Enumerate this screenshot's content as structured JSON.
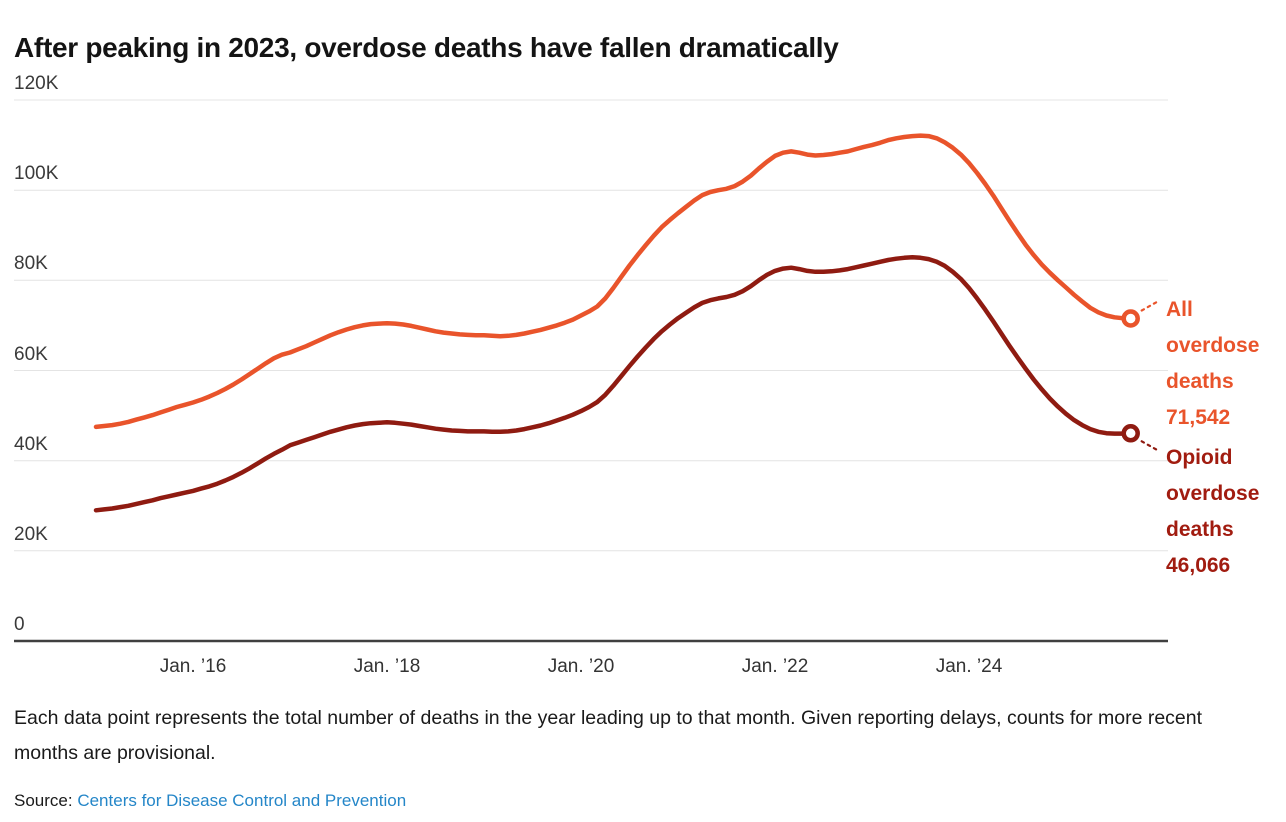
{
  "title": "After peaking in 2023, overdose deaths have fallen dramatically",
  "note": "Each data point represents the total number of deaths in the year leading up to that month. Given reporting delays, counts for more recent months are provisional.",
  "source": {
    "label": "Source:",
    "link_text": "Centers for Disease Control and Prevention",
    "link_color": "#2486C8"
  },
  "annotations": {
    "all": {
      "line1": "All",
      "line2": "overdose",
      "line3": "deaths",
      "value": "71,542",
      "color": "#E9542B"
    },
    "opioid": {
      "line1": "Opioid",
      "line2": "overdose",
      "line3": "deaths",
      "value": "46,066",
      "color": "#A11C10"
    }
  },
  "chart_data": {
    "type": "line",
    "title": "After peaking in 2023, overdose deaths have fallen dramatically",
    "x_start": "2015-01",
    "x_end": "2025-09",
    "x_interval": "monthly",
    "xlabel": "",
    "ylabel": "",
    "ylim": [
      0,
      120000
    ],
    "grid": "horizontal",
    "legend_position": "right-of-line-ends",
    "yticks": [
      {
        "value": 0,
        "label": "0"
      },
      {
        "value": 20000,
        "label": "20K"
      },
      {
        "value": 40000,
        "label": "40K"
      },
      {
        "value": 60000,
        "label": "60K"
      },
      {
        "value": 80000,
        "label": "80K"
      },
      {
        "value": 100000,
        "label": "100K"
      },
      {
        "value": 120000,
        "label": "120K"
      }
    ],
    "xticks": [
      {
        "year": 2016,
        "label": "Jan. ’16"
      },
      {
        "year": 2018,
        "label": "Jan. ’18"
      },
      {
        "year": 2020,
        "label": "Jan. ’20"
      },
      {
        "year": 2022,
        "label": "Jan. ’22"
      },
      {
        "year": 2024,
        "label": "Jan. ’24"
      }
    ],
    "series": [
      {
        "name": "All overdose deaths",
        "color": "#E9542B",
        "connector": "up",
        "final_value": 71542,
        "values": [
          47500,
          47700,
          47900,
          48200,
          48600,
          49100,
          49600,
          50100,
          50700,
          51300,
          51900,
          52400,
          52900,
          53500,
          54200,
          55000,
          55900,
          56900,
          58000,
          59200,
          60400,
          61600,
          62700,
          63500,
          64000,
          64700,
          65400,
          66200,
          67000,
          67800,
          68500,
          69100,
          69600,
          70000,
          70300,
          70400,
          70500,
          70400,
          70200,
          69900,
          69500,
          69100,
          68700,
          68400,
          68200,
          68000,
          67900,
          67800,
          67800,
          67700,
          67600,
          67700,
          67900,
          68200,
          68600,
          69000,
          69500,
          70000,
          70600,
          71300,
          72200,
          73100,
          74200,
          76000,
          78300,
          80800,
          83300,
          85600,
          87800,
          89900,
          91800,
          93400,
          94900,
          96300,
          97700,
          98900,
          99600,
          100000,
          100300,
          100900,
          101900,
          103200,
          104800,
          106300,
          107600,
          108300,
          108600,
          108300,
          107900,
          107700,
          107800,
          108000,
          108300,
          108600,
          109100,
          109600,
          110000,
          110500,
          111100,
          111500,
          111800,
          112000,
          112100,
          112000,
          111500,
          110600,
          109400,
          107900,
          106000,
          103800,
          101400,
          98800,
          96000,
          93200,
          90500,
          87900,
          85600,
          83500,
          81700,
          80000,
          78400,
          76800,
          75300,
          73900,
          72900,
          72200,
          71800,
          71600,
          71542
        ]
      },
      {
        "name": "Opioid overdose deaths",
        "color": "#8F1B11",
        "connector": "down",
        "final_value": 46066,
        "values": [
          29000,
          29200,
          29400,
          29700,
          30000,
          30400,
          30800,
          31200,
          31700,
          32100,
          32500,
          32900,
          33300,
          33800,
          34300,
          34900,
          35600,
          36400,
          37300,
          38300,
          39400,
          40500,
          41500,
          42400,
          43400,
          44000,
          44600,
          45200,
          45800,
          46400,
          46900,
          47400,
          47800,
          48100,
          48300,
          48400,
          48500,
          48400,
          48200,
          48000,
          47700,
          47400,
          47100,
          46900,
          46700,
          46600,
          46500,
          46500,
          46500,
          46400,
          46400,
          46500,
          46700,
          47000,
          47400,
          47800,
          48300,
          48900,
          49500,
          50200,
          51000,
          51900,
          53000,
          54600,
          56600,
          58800,
          61000,
          63100,
          65100,
          67000,
          68700,
          70200,
          71600,
          72800,
          74000,
          75000,
          75600,
          76000,
          76300,
          76800,
          77600,
          78700,
          80000,
          81200,
          82100,
          82600,
          82800,
          82500,
          82100,
          81900,
          81900,
          82000,
          82200,
          82500,
          82900,
          83300,
          83700,
          84100,
          84500,
          84800,
          85000,
          85100,
          85000,
          84700,
          84100,
          83200,
          81900,
          80300,
          78300,
          76000,
          73500,
          70900,
          68200,
          65500,
          62900,
          60400,
          58000,
          55800,
          53800,
          52000,
          50400,
          49000,
          47900,
          47000,
          46400,
          46100,
          46000,
          46000,
          46066
        ]
      }
    ]
  }
}
